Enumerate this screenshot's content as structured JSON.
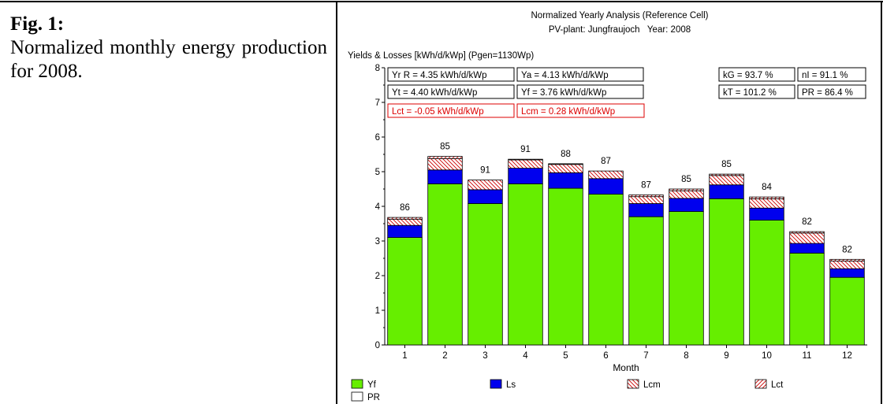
{
  "figure": {
    "label": "Fig. 1:",
    "text": "Normalized monthly energy production for 2008."
  },
  "chart_data": {
    "type": "bar",
    "stacked": true,
    "title": "Normalized Yearly Analysis (Reference Cell)",
    "subtitle": "PV-plant: Jungfraujoch   Year: 2008",
    "ylabel": "Yields & Losses [kWh/d/kWp] (Pgen=1130Wp)",
    "xlabel": "Month",
    "ylim": [
      0,
      8
    ],
    "yticks": [
      "0",
      "1",
      "2",
      "3",
      "4",
      "5",
      "6",
      "7",
      "8"
    ],
    "categories": [
      "1",
      "2",
      "3",
      "4",
      "5",
      "6",
      "7",
      "8",
      "9",
      "10",
      "11",
      "12"
    ],
    "series": [
      {
        "name": "Yf",
        "color": "#66ee00",
        "pattern": "solid",
        "values": [
          3.1,
          4.65,
          4.08,
          4.65,
          4.52,
          4.35,
          3.7,
          3.85,
          4.22,
          3.6,
          2.65,
          1.95
        ]
      },
      {
        "name": "Ls",
        "color": "#0000ee",
        "pattern": "solid",
        "values": [
          0.35,
          0.4,
          0.4,
          0.45,
          0.45,
          0.45,
          0.38,
          0.38,
          0.4,
          0.35,
          0.28,
          0.25
        ]
      },
      {
        "name": "Lcm",
        "color": "#cc0000",
        "pattern": "hatch-back",
        "values": [
          0.18,
          0.33,
          0.28,
          0.24,
          0.24,
          0.22,
          0.2,
          0.22,
          0.27,
          0.27,
          0.3,
          0.22
        ]
      },
      {
        "name": "Lct",
        "color": "#cc0000",
        "pattern": "hatch-fwd",
        "values": [
          0.05,
          0.06,
          0.0,
          0.02,
          0.02,
          0.0,
          0.05,
          0.05,
          0.04,
          0.05,
          0.04,
          0.05
        ]
      }
    ],
    "pr_labels": [
      "86",
      "85",
      "91",
      "91",
      "88",
      "87",
      "87",
      "85",
      "85",
      "84",
      "82",
      "82"
    ],
    "stats": {
      "yr": "Yr R = 4.35 kWh/d/kWp",
      "ya": "Ya = 4.13 kWh/d/kWp",
      "kg": "kG = 93.7 %",
      "nl": "nI = 91.1 %",
      "yt": "Yt = 4.40 kWh/d/kWp",
      "yf": "Yf = 3.76 kWh/d/kWp",
      "kt": "kT = 101.2 %",
      "pr": "PR = 86.4 %",
      "lct": "Lct = -0.05 kWh/d/kWp",
      "lcm": "Lcm = 0.28 kWh/d/kWp"
    },
    "legend": [
      {
        "label": "Yf",
        "swatch": "solid",
        "color": "#66ee00"
      },
      {
        "label": "Ls",
        "swatch": "solid",
        "color": "#0000ee"
      },
      {
        "label": "Lcm",
        "swatch": "hatch-back",
        "color": "#cc0000"
      },
      {
        "label": "Lct",
        "swatch": "hatch-fwd",
        "color": "#cc0000"
      },
      {
        "label": "PR",
        "swatch": "empty",
        "color": "#ffffff"
      }
    ],
    "grid": false
  }
}
